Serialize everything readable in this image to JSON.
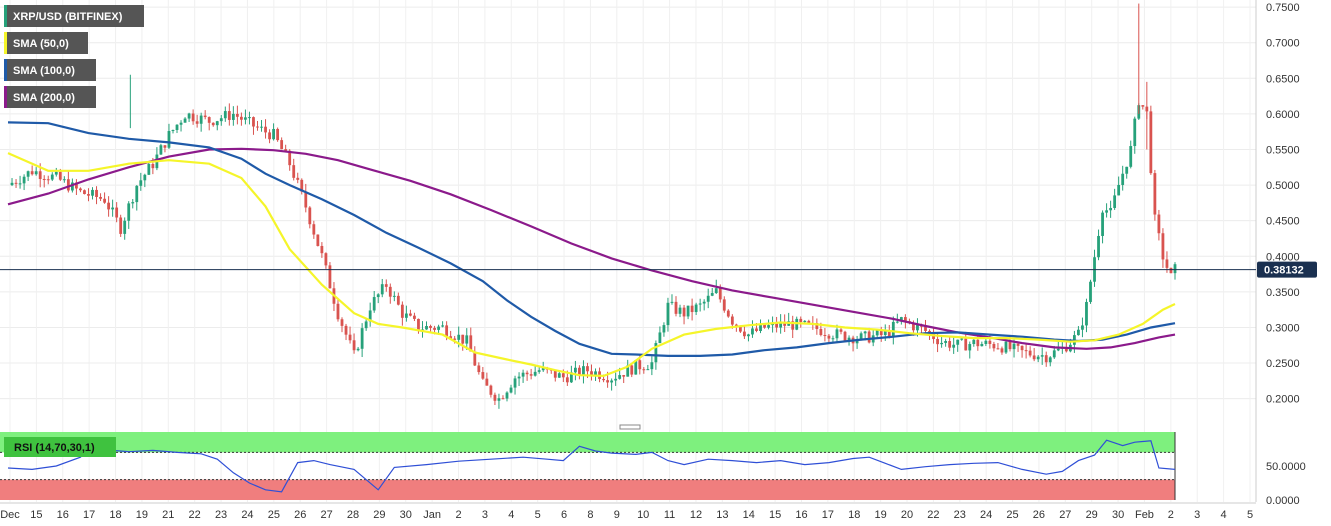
{
  "chart_data": {
    "type": "candlestick",
    "instrument": "XRP/USD (BITFINEX)",
    "legend": [
      {
        "label": "SMA (50,0)",
        "color": "#f5f52a"
      },
      {
        "label": "SMA (100,0)",
        "color": "#1f5aa8"
      },
      {
        "label": "SMA (200,0)",
        "color": "#8b1a8b"
      }
    ],
    "colors": {
      "bull": "#26a17a",
      "bear": "#d9534f",
      "sma50": "#f5f52a",
      "sma100": "#1f5aa8",
      "sma200": "#8b1a8b",
      "rsi_line": "#2f4fd6",
      "rsi_over": "#7ef07e",
      "rsi_under": "#f07e7e",
      "price_line": "#1a3050",
      "legend_bg": "#555555"
    },
    "ylim": [
      0.17,
      0.76
    ],
    "yticks": [
      "0.7500",
      "0.7000",
      "0.6500",
      "0.6000",
      "0.5500",
      "0.5000",
      "0.4500",
      "0.4000",
      "0.3500",
      "0.3000",
      "0.2500",
      "0.2000"
    ],
    "last_price": "0.38132",
    "x_ticks": [
      "Dec",
      "15",
      "16",
      "17",
      "18",
      "19",
      "21",
      "22",
      "23",
      "24",
      "25",
      "26",
      "27",
      "28",
      "29",
      "30",
      "Jan",
      "2",
      "3",
      "4",
      "5",
      "6",
      "8",
      "9",
      "10",
      "11",
      "12",
      "13",
      "14",
      "15",
      "16",
      "17",
      "18",
      "19",
      "20",
      "22",
      "23",
      "24",
      "25",
      "26",
      "27",
      "29",
      "30",
      "Feb",
      "2",
      "3",
      "4",
      "5"
    ],
    "sma50_points": [
      [
        0,
        0.545
      ],
      [
        10,
        0.52
      ],
      [
        20,
        0.52
      ],
      [
        30,
        0.53
      ],
      [
        40,
        0.535
      ],
      [
        50,
        0.53
      ],
      [
        58,
        0.51
      ],
      [
        64,
        0.47
      ],
      [
        70,
        0.41
      ],
      [
        78,
        0.36
      ],
      [
        86,
        0.32
      ],
      [
        92,
        0.305
      ],
      [
        98,
        0.3
      ],
      [
        108,
        0.29
      ],
      [
        116,
        0.265
      ],
      [
        124,
        0.255
      ],
      [
        130,
        0.248
      ],
      [
        136,
        0.24
      ],
      [
        142,
        0.233
      ],
      [
        148,
        0.232
      ],
      [
        154,
        0.245
      ],
      [
        160,
        0.27
      ],
      [
        168,
        0.29
      ],
      [
        176,
        0.298
      ],
      [
        184,
        0.303
      ],
      [
        192,
        0.307
      ],
      [
        200,
        0.305
      ],
      [
        208,
        0.3
      ],
      [
        216,
        0.297
      ],
      [
        224,
        0.292
      ],
      [
        232,
        0.288
      ],
      [
        240,
        0.285
      ],
      [
        248,
        0.285
      ],
      [
        256,
        0.283
      ],
      [
        264,
        0.28
      ],
      [
        270,
        0.282
      ],
      [
        276,
        0.29
      ],
      [
        282,
        0.305
      ],
      [
        287,
        0.325
      ],
      [
        290,
        0.333
      ]
    ],
    "sma100_points": [
      [
        0,
        0.588
      ],
      [
        10,
        0.587
      ],
      [
        20,
        0.573
      ],
      [
        30,
        0.565
      ],
      [
        40,
        0.56
      ],
      [
        50,
        0.553
      ],
      [
        58,
        0.537
      ],
      [
        64,
        0.516
      ],
      [
        70,
        0.5
      ],
      [
        78,
        0.48
      ],
      [
        86,
        0.458
      ],
      [
        94,
        0.433
      ],
      [
        102,
        0.412
      ],
      [
        110,
        0.39
      ],
      [
        118,
        0.365
      ],
      [
        124,
        0.338
      ],
      [
        130,
        0.315
      ],
      [
        136,
        0.295
      ],
      [
        142,
        0.277
      ],
      [
        150,
        0.263
      ],
      [
        156,
        0.262
      ],
      [
        164,
        0.26
      ],
      [
        172,
        0.26
      ],
      [
        180,
        0.262
      ],
      [
        188,
        0.268
      ],
      [
        196,
        0.272
      ],
      [
        204,
        0.278
      ],
      [
        212,
        0.283
      ],
      [
        220,
        0.287
      ],
      [
        228,
        0.292
      ],
      [
        236,
        0.293
      ],
      [
        244,
        0.29
      ],
      [
        252,
        0.287
      ],
      [
        260,
        0.283
      ],
      [
        266,
        0.281
      ],
      [
        272,
        0.283
      ],
      [
        278,
        0.29
      ],
      [
        284,
        0.3
      ],
      [
        290,
        0.306
      ]
    ],
    "sma200_points": [
      [
        0,
        0.473
      ],
      [
        10,
        0.488
      ],
      [
        20,
        0.508
      ],
      [
        30,
        0.525
      ],
      [
        40,
        0.54
      ],
      [
        50,
        0.55
      ],
      [
        58,
        0.551
      ],
      [
        66,
        0.549
      ],
      [
        74,
        0.544
      ],
      [
        82,
        0.535
      ],
      [
        90,
        0.522
      ],
      [
        100,
        0.506
      ],
      [
        110,
        0.487
      ],
      [
        120,
        0.465
      ],
      [
        130,
        0.442
      ],
      [
        140,
        0.418
      ],
      [
        150,
        0.397
      ],
      [
        160,
        0.38
      ],
      [
        170,
        0.365
      ],
      [
        180,
        0.352
      ],
      [
        190,
        0.342
      ],
      [
        200,
        0.332
      ],
      [
        210,
        0.322
      ],
      [
        220,
        0.312
      ],
      [
        228,
        0.302
      ],
      [
        236,
        0.293
      ],
      [
        244,
        0.286
      ],
      [
        252,
        0.278
      ],
      [
        260,
        0.272
      ],
      [
        268,
        0.27
      ],
      [
        274,
        0.272
      ],
      [
        280,
        0.278
      ],
      [
        286,
        0.286
      ],
      [
        290,
        0.29
      ]
    ],
    "rsi": {
      "label": "RSI (14,70,30,1)",
      "ylim": [
        0,
        100
      ],
      "overbought": 70,
      "oversold": 30,
      "yticks": [
        "50.0000",
        "0.0000"
      ],
      "points": [
        [
          0,
          47
        ],
        [
          6,
          45
        ],
        [
          12,
          50
        ],
        [
          18,
          63
        ],
        [
          20,
          75
        ],
        [
          24,
          74
        ],
        [
          30,
          71
        ],
        [
          36,
          73
        ],
        [
          42,
          70
        ],
        [
          48,
          68
        ],
        [
          52,
          60
        ],
        [
          56,
          40
        ],
        [
          60,
          25
        ],
        [
          64,
          15
        ],
        [
          68,
          12
        ],
        [
          72,
          55
        ],
        [
          76,
          58
        ],
        [
          80,
          52
        ],
        [
          86,
          45
        ],
        [
          92,
          15
        ],
        [
          96,
          48
        ],
        [
          104,
          52
        ],
        [
          112,
          57
        ],
        [
          120,
          60
        ],
        [
          128,
          63
        ],
        [
          134,
          60
        ],
        [
          138,
          58
        ],
        [
          142,
          79
        ],
        [
          146,
          72
        ],
        [
          150,
          69
        ],
        [
          156,
          67
        ],
        [
          160,
          70
        ],
        [
          164,
          58
        ],
        [
          168,
          52
        ],
        [
          174,
          60
        ],
        [
          180,
          58
        ],
        [
          186,
          55
        ],
        [
          192,
          58
        ],
        [
          198,
          52
        ],
        [
          204,
          55
        ],
        [
          210,
          61
        ],
        [
          214,
          63
        ],
        [
          218,
          54
        ],
        [
          222,
          45
        ],
        [
          228,
          49
        ],
        [
          234,
          52
        ],
        [
          240,
          54
        ],
        [
          246,
          55
        ],
        [
          252,
          45
        ],
        [
          258,
          38
        ],
        [
          262,
          42
        ],
        [
          266,
          58
        ],
        [
          270,
          66
        ],
        [
          273,
          88
        ],
        [
          277,
          80
        ],
        [
          280,
          85
        ],
        [
          284,
          87
        ],
        [
          286,
          47
        ],
        [
          290,
          45
        ]
      ]
    }
  }
}
